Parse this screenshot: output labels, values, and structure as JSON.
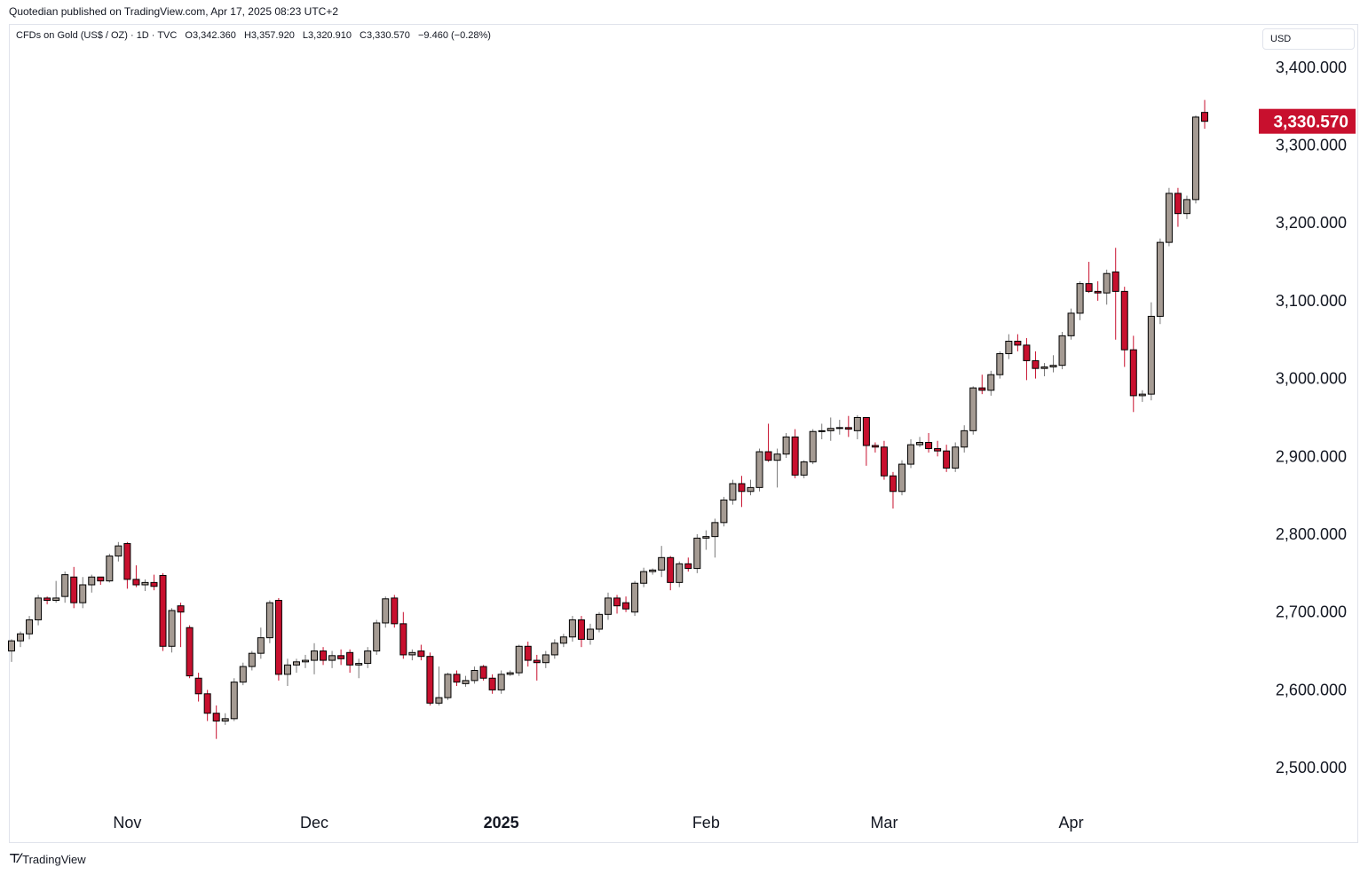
{
  "publisher": "Quotedian published on TradingView.com, Apr 17, 2025 08:23 UTC+2",
  "header": {
    "symbol": "CFDs on Gold (US$ / OZ) · 1D · TVC",
    "open": "O3,342.360",
    "high": "H3,357.920",
    "low": "L3,320.910",
    "close": "C3,330.570",
    "change": "−9.460 (−0.28%)"
  },
  "currency": "USD",
  "last_price": "3,330.570",
  "brand": "TradingView",
  "colors": {
    "up": "#a59b93",
    "down": "#c8102e",
    "wick": "#777777",
    "last_price_bg": "#c8102e"
  },
  "chart_data": {
    "type": "candlestick",
    "title": "",
    "ylim": [
      2450,
      3420
    ],
    "y_ticks": [
      {
        "value": 3400,
        "label": "3,400.000"
      },
      {
        "value": 3300,
        "label": "3,300.000"
      },
      {
        "value": 3200,
        "label": "3,200.000"
      },
      {
        "value": 3100,
        "label": "3,100.000"
      },
      {
        "value": 3000,
        "label": "3,000.000"
      },
      {
        "value": 2900,
        "label": "2,900.000"
      },
      {
        "value": 2800,
        "label": "2,800.000"
      },
      {
        "value": 2700,
        "label": "2,700.000"
      },
      {
        "value": 2600,
        "label": "2,600.000"
      },
      {
        "value": 2500,
        "label": "2,500.000"
      }
    ],
    "x_ticks": [
      {
        "index": 13,
        "label": "Nov",
        "bold": false
      },
      {
        "index": 34,
        "label": "Dec",
        "bold": false
      },
      {
        "index": 55,
        "label": "2025",
        "bold": true
      },
      {
        "index": 78,
        "label": "Feb",
        "bold": false
      },
      {
        "index": 98,
        "label": "Mar",
        "bold": false
      },
      {
        "index": 119,
        "label": "Apr",
        "bold": false
      }
    ],
    "candles": [
      [
        2650,
        2665,
        2636,
        2663
      ],
      [
        2663,
        2675,
        2655,
        2672
      ],
      [
        2672,
        2695,
        2665,
        2690
      ],
      [
        2690,
        2722,
        2683,
        2718
      ],
      [
        2718,
        2720,
        2710,
        2715
      ],
      [
        2715,
        2740,
        2712,
        2718
      ],
      [
        2720,
        2752,
        2712,
        2748
      ],
      [
        2745,
        2758,
        2705,
        2712
      ],
      [
        2712,
        2745,
        2705,
        2735
      ],
      [
        2735,
        2748,
        2725,
        2745
      ],
      [
        2745,
        2745,
        2735,
        2740
      ],
      [
        2740,
        2775,
        2738,
        2772
      ],
      [
        2772,
        2790,
        2765,
        2785
      ],
      [
        2788,
        2790,
        2730,
        2742
      ],
      [
        2742,
        2760,
        2732,
        2735
      ],
      [
        2735,
        2742,
        2727,
        2738
      ],
      [
        2738,
        2748,
        2728,
        2733
      ],
      [
        2747,
        2750,
        2650,
        2656
      ],
      [
        2656,
        2705,
        2648,
        2702
      ],
      [
        2708,
        2712,
        2655,
        2700
      ],
      [
        2680,
        2683,
        2615,
        2618
      ],
      [
        2615,
        2622,
        2585,
        2595
      ],
      [
        2595,
        2600,
        2560,
        2570
      ],
      [
        2570,
        2580,
        2537,
        2560
      ],
      [
        2560,
        2570,
        2555,
        2563
      ],
      [
        2563,
        2615,
        2560,
        2610
      ],
      [
        2610,
        2635,
        2606,
        2630
      ],
      [
        2630,
        2650,
        2625,
        2647
      ],
      [
        2647,
        2680,
        2640,
        2667
      ],
      [
        2667,
        2715,
        2660,
        2712
      ],
      [
        2715,
        2718,
        2612,
        2620
      ],
      [
        2620,
        2640,
        2605,
        2632
      ],
      [
        2632,
        2640,
        2622,
        2636
      ],
      [
        2636,
        2645,
        2628,
        2638
      ],
      [
        2638,
        2660,
        2620,
        2650
      ],
      [
        2650,
        2655,
        2632,
        2638
      ],
      [
        2638,
        2650,
        2628,
        2644
      ],
      [
        2644,
        2652,
        2632,
        2640
      ],
      [
        2648,
        2652,
        2622,
        2632
      ],
      [
        2632,
        2640,
        2615,
        2634
      ],
      [
        2634,
        2655,
        2628,
        2650
      ],
      [
        2650,
        2690,
        2645,
        2686
      ],
      [
        2686,
        2720,
        2680,
        2717
      ],
      [
        2718,
        2722,
        2680,
        2685
      ],
      [
        2685,
        2700,
        2640,
        2645
      ],
      [
        2645,
        2652,
        2638,
        2648
      ],
      [
        2650,
        2658,
        2638,
        2643
      ],
      [
        2643,
        2648,
        2580,
        2583
      ],
      [
        2583,
        2630,
        2580,
        2590
      ],
      [
        2590,
        2622,
        2587,
        2620
      ],
      [
        2620,
        2625,
        2605,
        2610
      ],
      [
        2608,
        2618,
        2604,
        2612
      ],
      [
        2612,
        2630,
        2608,
        2625
      ],
      [
        2630,
        2632,
        2612,
        2615
      ],
      [
        2615,
        2620,
        2595,
        2600
      ],
      [
        2600,
        2625,
        2595,
        2620
      ],
      [
        2620,
        2625,
        2618,
        2622
      ],
      [
        2622,
        2658,
        2618,
        2656
      ],
      [
        2656,
        2662,
        2630,
        2638
      ],
      [
        2638,
        2645,
        2612,
        2635
      ],
      [
        2635,
        2650,
        2628,
        2645
      ],
      [
        2645,
        2665,
        2640,
        2660
      ],
      [
        2660,
        2672,
        2655,
        2668
      ],
      [
        2668,
        2695,
        2662,
        2690
      ],
      [
        2690,
        2695,
        2655,
        2665
      ],
      [
        2665,
        2685,
        2658,
        2678
      ],
      [
        2678,
        2700,
        2674,
        2697
      ],
      [
        2697,
        2725,
        2690,
        2718
      ],
      [
        2718,
        2722,
        2698,
        2708
      ],
      [
        2712,
        2720,
        2700,
        2704
      ],
      [
        2700,
        2740,
        2695,
        2737
      ],
      [
        2737,
        2757,
        2732,
        2752
      ],
      [
        2752,
        2756,
        2748,
        2754
      ],
      [
        2754,
        2785,
        2745,
        2770
      ],
      [
        2770,
        2772,
        2728,
        2738
      ],
      [
        2738,
        2765,
        2732,
        2762
      ],
      [
        2762,
        2770,
        2752,
        2756
      ],
      [
        2756,
        2800,
        2750,
        2795
      ],
      [
        2795,
        2805,
        2780,
        2797
      ],
      [
        2797,
        2820,
        2770,
        2815
      ],
      [
        2815,
        2848,
        2810,
        2844
      ],
      [
        2844,
        2870,
        2838,
        2865
      ],
      [
        2865,
        2875,
        2835,
        2855
      ],
      [
        2855,
        2870,
        2850,
        2860
      ],
      [
        2860,
        2910,
        2855,
        2906
      ],
      [
        2906,
        2942,
        2893,
        2895
      ],
      [
        2895,
        2910,
        2860,
        2903
      ],
      [
        2903,
        2930,
        2898,
        2925
      ],
      [
        2925,
        2935,
        2872,
        2876
      ],
      [
        2876,
        2895,
        2872,
        2893
      ],
      [
        2893,
        2935,
        2890,
        2932
      ],
      [
        2932,
        2942,
        2922,
        2933
      ],
      [
        2933,
        2950,
        2920,
        2936
      ],
      [
        2936,
        2947,
        2928,
        2937
      ],
      [
        2937,
        2952,
        2925,
        2935
      ],
      [
        2933,
        2953,
        2922,
        2950
      ],
      [
        2950,
        2950,
        2888,
        2914
      ],
      [
        2914,
        2918,
        2905,
        2912
      ],
      [
        2912,
        2920,
        2870,
        2875
      ],
      [
        2875,
        2880,
        2833,
        2855
      ],
      [
        2855,
        2895,
        2850,
        2890
      ],
      [
        2890,
        2922,
        2885,
        2915
      ],
      [
        2915,
        2925,
        2912,
        2918
      ],
      [
        2918,
        2930,
        2905,
        2910
      ],
      [
        2910,
        2920,
        2900,
        2907
      ],
      [
        2907,
        2915,
        2880,
        2885
      ],
      [
        2885,
        2918,
        2880,
        2912
      ],
      [
        2912,
        2940,
        2905,
        2933
      ],
      [
        2933,
        2990,
        2928,
        2988
      ],
      [
        2988,
        3005,
        2980,
        2985
      ],
      [
        2985,
        3010,
        2978,
        3005
      ],
      [
        3005,
        3035,
        3000,
        3032
      ],
      [
        3032,
        3057,
        3025,
        3048
      ],
      [
        3048,
        3057,
        3035,
        3043
      ],
      [
        3043,
        3052,
        2998,
        3023
      ],
      [
        3023,
        3035,
        3000,
        3013
      ],
      [
        3013,
        3020,
        3003,
        3015
      ],
      [
        3015,
        3030,
        3008,
        3017
      ],
      [
        3017,
        3060,
        3012,
        3055
      ],
      [
        3055,
        3090,
        3050,
        3084
      ],
      [
        3084,
        3125,
        3075,
        3122
      ],
      [
        3122,
        3150,
        3110,
        3112
      ],
      [
        3112,
        3125,
        3100,
        3110
      ],
      [
        3110,
        3140,
        3095,
        3135
      ],
      [
        3137,
        3168,
        3050,
        3112
      ],
      [
        3112,
        3118,
        3015,
        3037
      ],
      [
        3037,
        3055,
        2957,
        2978
      ],
      [
        2978,
        2985,
        2970,
        2980
      ],
      [
        2980,
        3098,
        2972,
        3080
      ],
      [
        3080,
        3180,
        3070,
        3175
      ],
      [
        3175,
        3245,
        3170,
        3238
      ],
      [
        3238,
        3245,
        3195,
        3212
      ],
      [
        3212,
        3235,
        3205,
        3230
      ],
      [
        3230,
        3338,
        3225,
        3336
      ],
      [
        3342,
        3358,
        3321,
        3330.57
      ]
    ]
  }
}
